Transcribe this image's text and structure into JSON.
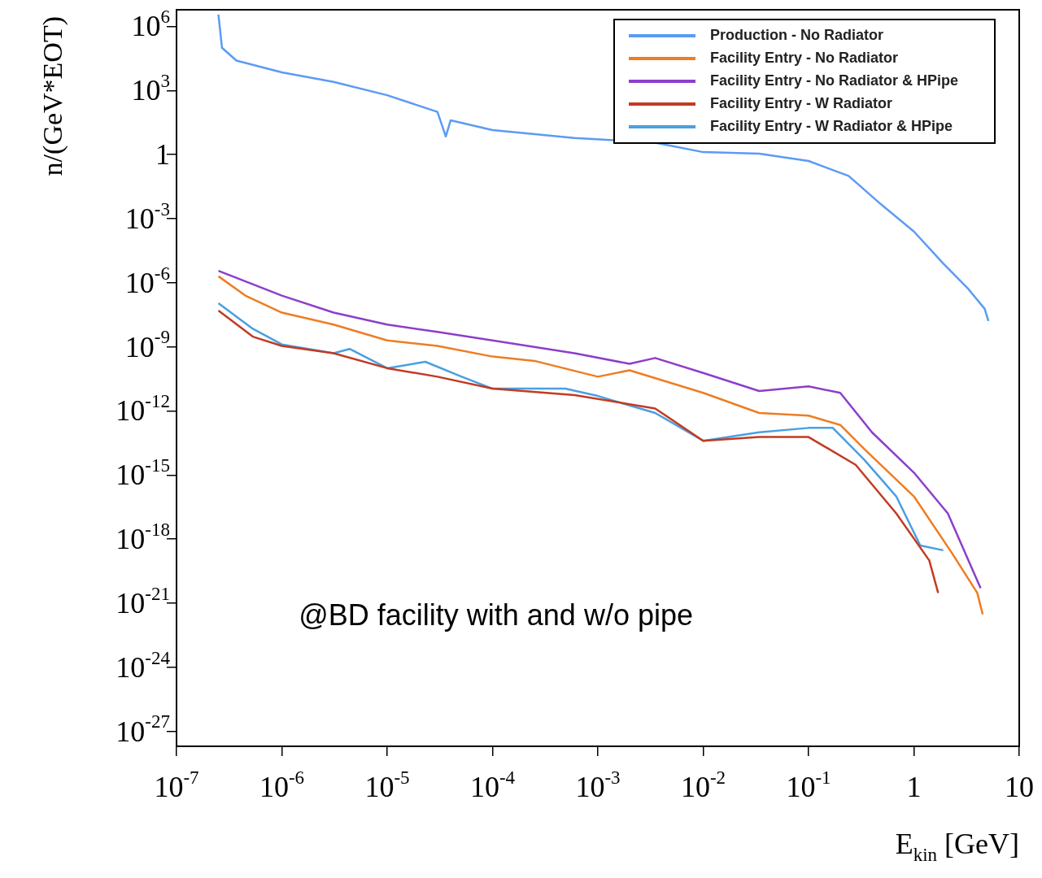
{
  "chart_data": {
    "type": "line",
    "xlabel": "E$_{kin}$ [GeV]",
    "ylabel": "n/(GeV*EOT)",
    "log": "xy",
    "grid": false,
    "legend": "top right",
    "marker": "none",
    "line_style": "solid",
    "xlim": [
      1e-07,
      10
    ],
    "ylim": [
      2e-28,
      6000000.0
    ],
    "xticks": [
      {
        "value": 1e-07,
        "label": "10$^{-7}$"
      },
      {
        "value": 1e-06,
        "label": "10$^{-6}$"
      },
      {
        "value": 1e-05,
        "label": "10$^{-5}$"
      },
      {
        "value": 0.0001,
        "label": "10$^{-4}$"
      },
      {
        "value": 0.001,
        "label": "10$^{-3}$"
      },
      {
        "value": 0.01,
        "label": "10$^{-2}$"
      },
      {
        "value": 0.1,
        "label": "10$^{-1}$"
      },
      1,
      10
    ],
    "yticks": [
      {
        "value": 1e-27,
        "label": "10$^{-27}$"
      },
      {
        "value": 1e-24,
        "label": "10$^{-24}$"
      },
      {
        "value": 1e-21,
        "label": "10$^{-21}$"
      },
      {
        "value": 1e-18,
        "label": "10$^{-18}$"
      },
      {
        "value": 1e-15,
        "label": "10$^{-15}$"
      },
      {
        "value": 1e-12,
        "label": "10$^{-12}$"
      },
      {
        "value": 1e-09,
        "label": "10$^{-9}$"
      },
      {
        "value": 1e-06,
        "label": "10$^{-6}$"
      },
      {
        "value": 0.001,
        "label": "10$^{-3}$"
      },
      1,
      {
        "value": 1000.0,
        "label": "10$^{3}$"
      },
      {
        "value": 1000000.0,
        "label": "10$^{6}$"
      }
    ],
    "annotations": [
      "@BD facility with and w/o pipe"
    ],
    "series": [
      {
        "name": "Production - No Radiator",
        "color": "#5b9bf5",
        "x": [
          2.5e-07,
          2.7e-07,
          3.7e-07,
          1e-06,
          3.1e-06,
          1e-05,
          3e-05,
          3.6e-05,
          4e-05,
          0.0001,
          0.0006,
          0.0035,
          0.01,
          0.034,
          0.1,
          0.24,
          0.48,
          1,
          1.9,
          3.3,
          4.7,
          5.1
        ],
        "values": [
          3600000.0,
          100000.0,
          25000.0,
          7000.0,
          2500.0,
          600,
          100,
          7,
          40,
          14,
          6,
          3.6,
          1.3,
          1.1,
          0.5,
          0.1,
          0.005,
          0.00025,
          8e-06,
          5e-07,
          6e-08,
          1.6e-08
        ]
      },
      {
        "name": "Facility Entry - No Radiator",
        "color": "#ee7d22",
        "x": [
          2.5e-07,
          4.5e-07,
          1e-06,
          3.1e-06,
          1e-05,
          3e-05,
          0.0001,
          0.00025,
          0.001,
          0.002,
          0.01,
          0.034,
          0.1,
          0.2,
          0.34,
          1,
          2.3,
          4,
          4.5
        ],
        "values": [
          2e-06,
          2.5e-07,
          4e-08,
          1.1e-08,
          2e-09,
          1.1e-09,
          3.5e-10,
          2.2e-10,
          4e-11,
          8e-11,
          7e-12,
          8e-13,
          6e-13,
          2.2e-13,
          1.6e-14,
          1e-16,
          2.2e-19,
          3e-21,
          3e-22
        ]
      },
      {
        "name": "Facility Entry - No Radiator & HPipe",
        "color": "#8c3fc9",
        "x": [
          2.5e-07,
          1e-06,
          3.1e-06,
          1e-05,
          3e-05,
          0.0001,
          0.0006,
          0.002,
          0.0035,
          0.01,
          0.034,
          0.1,
          0.2,
          0.4,
          1,
          2.1,
          4.3
        ],
        "values": [
          3.6e-06,
          2.5e-07,
          4e-08,
          1.1e-08,
          5e-09,
          2e-09,
          5e-10,
          1.6e-10,
          3e-10,
          6e-11,
          8.5e-12,
          1.4e-11,
          7e-12,
          1e-13,
          1.3e-15,
          1.6e-17,
          5e-21
        ]
      },
      {
        "name": "Facility Entry - W Radiator",
        "color": "#c23b22",
        "x": [
          2.5e-07,
          5.3e-07,
          1e-06,
          3.1e-06,
          1e-05,
          3e-05,
          0.0001,
          0.0006,
          0.0035,
          0.01,
          0.034,
          0.1,
          0.28,
          0.68,
          1.4,
          1.7
        ],
        "values": [
          5e-08,
          3e-09,
          1.1e-09,
          5e-10,
          1e-10,
          4e-11,
          1.1e-11,
          5.5e-12,
          1.3e-12,
          4e-14,
          6e-14,
          6e-14,
          3e-15,
          1.6e-17,
          1e-19,
          3e-21
        ]
      },
      {
        "name": "Facility Entry - W Radiator & HPipe",
        "color": "#4a9fe0",
        "x": [
          2.5e-07,
          5.3e-07,
          1e-06,
          3.1e-06,
          4.4e-06,
          1e-05,
          2.3e-05,
          5.1e-05,
          0.0001,
          0.00049,
          0.001,
          0.0035,
          0.01,
          0.034,
          0.1,
          0.17,
          0.34,
          0.68,
          1.15,
          1.9
        ],
        "values": [
          1.1e-07,
          7e-09,
          1.3e-09,
          5e-10,
          8e-10,
          1e-10,
          2e-10,
          4e-11,
          1.1e-11,
          1.1e-11,
          5e-12,
          8e-13,
          4e-14,
          1e-13,
          1.6e-13,
          1.6e-13,
          5e-15,
          1e-16,
          5e-19,
          3e-19
        ]
      }
    ]
  }
}
